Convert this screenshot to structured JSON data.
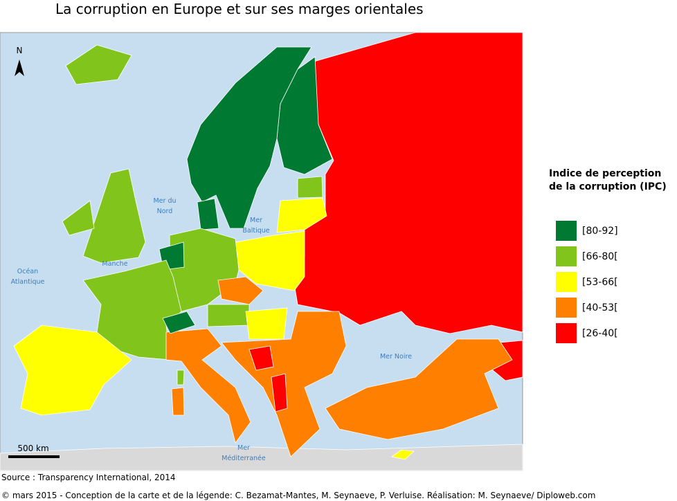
{
  "title": "La corruption en Europe et sur ses marges orientales",
  "map": {
    "north": "N",
    "scale": "500 km",
    "sea_labels": [
      {
        "lines": [
          "Mer du",
          "Nord"
        ]
      },
      {
        "lines": [
          "Mer",
          "Baltique"
        ]
      },
      {
        "lines": [
          "Océan",
          "Atlantique"
        ]
      },
      {
        "lines": [
          "Manche"
        ]
      },
      {
        "lines": [
          "Mer Noire"
        ]
      },
      {
        "lines": [
          "Mer",
          "Méditerranée"
        ]
      }
    ]
  },
  "legend": {
    "title_lines": [
      "Indice de perception",
      "de la corruption (IPC)"
    ],
    "items": [
      {
        "label": "[80-92]",
        "color": "#007a33"
      },
      {
        "label": "[66-80[",
        "color": "#80c41c"
      },
      {
        "label": "[53-66[",
        "color": "#ffff00"
      },
      {
        "label": "[40-53[",
        "color": "#ff8000"
      },
      {
        "label": "[26-40[",
        "color": "#ff0000"
      }
    ]
  },
  "source": "Source : Transparency International, 2014",
  "credits": "© mars 2015 - Conception de la carte et de la légende: C. Bezamat-Mantes, M. Seynaeve, P. Verluise. Réalisation: M. Seynaeve/ Diploweb.com"
}
